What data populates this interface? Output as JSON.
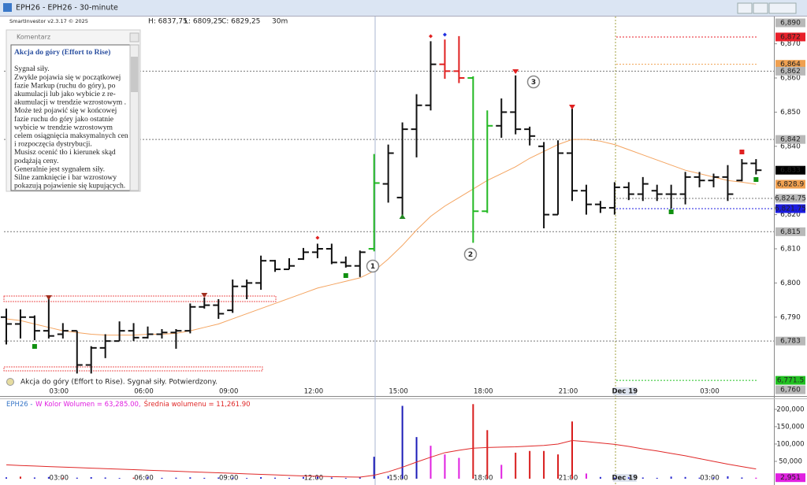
{
  "window_title": "EPH26 - EPH26 - 30-minute",
  "header": {
    "app": "SmartInvestor v2.3.17 © 2025",
    "high": "H: 6837,75",
    "low": "L: 6809,25",
    "close": "C: 6829,25",
    "interval": "30m"
  },
  "comment": {
    "header": "Komentarz",
    "title": "Akcja do góry  (Effort to Rise)",
    "lines": [
      "Sygnał siły.",
      "Zwykle pojawia się w początkowej",
      "fazie Markup (ruchu do góry),  po",
      "akumulacji lub  jako wybicie z re-",
      "akumulacji  w trendzie wzrostowym .",
      "Może też pojawić się w końcowej",
      "fazie ruchu do góry jako ostatnie",
      "wybicie  w trendzie wzrostowym",
      "celem osiągnięcia maksymalnych cen",
      "i rozpoczęcia dystrybucji.",
      "Musisz ocenić tło i kierunek skąd",
      "podążają ceny.",
      "Generalnie jest sygnałem siły.",
      "Silne zamknięcie i bar wzrostowy",
      "pokazują  pojawienie się kupujących."
    ]
  },
  "signal_note": "Akcja do góry (Effort to Rise). Sygnał siły. Potwierdzony.",
  "annotations": [
    "1",
    "2",
    "3"
  ],
  "chart_data": {
    "type": "ohlc",
    "categories": [
      null,
      null,
      null,
      null,
      "03:00",
      null,
      null,
      null,
      null,
      null,
      "06:00",
      null,
      null,
      null,
      null,
      null,
      "09:00",
      null,
      null,
      null,
      null,
      null,
      "12:00",
      null,
      null,
      null,
      null,
      null,
      "15:00",
      null,
      null,
      null,
      null,
      null,
      "18:00",
      null,
      null,
      null,
      null,
      null,
      "21:00",
      null,
      null,
      null,
      "Dec 19",
      null,
      null,
      null,
      null,
      null,
      "03:00",
      null,
      null,
      null
    ],
    "open": [
      6790,
      6788,
      6790,
      6786,
      6785,
      6786,
      6776,
      6781,
      6783,
      6786,
      6784,
      6785,
      6785.5,
      6786,
      6793,
      6793.5,
      6792,
      6799,
      6800,
      6806.5,
      6804,
      6807,
      6809,
      6810,
      6806,
      6805,
      6810,
      6829,
      6825,
      6845,
      6852,
      6864,
      6862,
      6860,
      6821,
      6846,
      6850,
      6845,
      6840,
      6820,
      6838,
      6827,
      6823,
      6822,
      6828,
      6826,
      6827,
      6826,
      6826,
      6831,
      6830,
      6831,
      6830,
      6835
    ],
    "high": [
      6792.5,
      6792.25,
      6790.5,
      6796,
      6788.25,
      6786,
      6781.5,
      6785,
      6788.75,
      6788.25,
      6787.25,
      6786.5,
      6786.5,
      6794,
      6795.75,
      6795.25,
      6801,
      6801,
      6808,
      6806.75,
      6807.25,
      6810.25,
      6811.5,
      6811.5,
      6807.75,
      6809.5,
      6837.75,
      6840.5,
      6847,
      6855.25,
      6870.75,
      6871.25,
      6872.25,
      6860.5,
      6850.5,
      6854,
      6860.75,
      6845.75,
      6841.25,
      6841.75,
      6851,
      6828.75,
      6824,
      6829.5,
      6829.5,
      6831,
      6828.75,
      6828.75,
      6832.5,
      6832.5,
      6832,
      6834.5,
      6836.25,
      6836.25
    ],
    "low": [
      6782,
      6783.75,
      6783.25,
      6783.75,
      6783.75,
      6773.5,
      6773.5,
      6778,
      6783,
      6783,
      6783.75,
      6783.75,
      6780.75,
      6785.25,
      6792.5,
      6789.5,
      6791.25,
      6795.25,
      6798,
      6803.25,
      6804,
      6806.75,
      6807.25,
      6805.5,
      6804.5,
      6801.75,
      6809.25,
      6823.5,
      6819.5,
      6836.75,
      6850.5,
      6859.75,
      6858.5,
      6811.75,
      6820.5,
      6842.5,
      6843.5,
      6840.25,
      6816,
      6820,
      6824,
      6820,
      6820.5,
      6820,
      6824.25,
      6824,
      6824,
      6821.75,
      6823,
      6828,
      6828,
      6824,
      6829.75,
      6831.75
    ],
    "close": [
      6788,
      6790,
      6786,
      6784.5,
      6786,
      6776,
      6781,
      6783,
      6786,
      6784,
      6785,
      6785.5,
      6786,
      6793,
      6793.5,
      6791,
      6799,
      6800,
      6806.5,
      6804,
      6805,
      6809,
      6810,
      6806,
      6805,
      6809,
      6829.25,
      6838,
      6845,
      6852,
      6864,
      6862,
      6860,
      6821,
      6846,
      6850,
      6845,
      6843,
      6820,
      6838,
      6827,
      6823,
      6822,
      6828,
      6826,
      6829,
      6826,
      6826,
      6831,
      6830,
      6831,
      6826,
      6835,
      6833
    ],
    "bar_colors": [
      "#111111",
      "#111111",
      "#111111",
      "#111111",
      "#111111",
      "#111111",
      "#111111",
      "#111111",
      "#111111",
      "#111111",
      "#111111",
      "#111111",
      "#111111",
      "#111111",
      "#111111",
      "#111111",
      "#111111",
      "#111111",
      "#111111",
      "#111111",
      "#111111",
      "#111111",
      "#111111",
      "#111111",
      "#111111",
      "#111111",
      "#22b822",
      "#111111",
      "#111111",
      "#111111",
      "#111111",
      "#e02020",
      "#e02020",
      "#22b822",
      "#22b822",
      "#111111",
      "#111111",
      "#111111",
      "#111111",
      "#111111",
      "#111111",
      "#111111",
      "#111111",
      "#111111",
      "#111111",
      "#111111",
      "#111111",
      "#111111",
      "#111111",
      "#111111",
      "#111111",
      "#111111",
      "#111111",
      "#111111"
    ],
    "ma": {
      "color": "#f4a460",
      "values": [
        6789.5,
        6789,
        6788,
        6787,
        6786,
        6785.5,
        6785,
        6784.75,
        6784.75,
        6784.75,
        6785,
        6785,
        6785.25,
        6786,
        6787,
        6788,
        6789.5,
        6791,
        6792.5,
        6794,
        6795.5,
        6797,
        6798.5,
        6799.5,
        6800.5,
        6801.5,
        6803.5,
        6807,
        6811,
        6815.5,
        6819.5,
        6822.5,
        6825,
        6827.5,
        6830,
        6832,
        6834,
        6836.5,
        6838.5,
        6840.5,
        6842,
        6842,
        6841.5,
        6840.5,
        6839,
        6837.5,
        6836,
        6834.5,
        6833,
        6832,
        6831,
        6830,
        6829.5,
        6828.9
      ]
    },
    "ylim": [
      6767.6,
      6877.75
    ],
    "yticks": [
      {
        "value": 6870,
        "label": "6,870"
      },
      {
        "value": 6860,
        "label": "6,860"
      },
      {
        "value": 6850,
        "label": "6,850"
      },
      {
        "value": 6840,
        "label": "6,840"
      },
      {
        "value": 6820,
        "label": "6,820"
      },
      {
        "value": 6810,
        "label": "6,810"
      },
      {
        "value": 6800,
        "label": "6,800"
      },
      {
        "value": 6790,
        "label": "6,790"
      }
    ],
    "range_labels": [
      "6,890",
      "6,760"
    ],
    "levels": [
      {
        "value": 6872,
        "label": "6,872",
        "color": "#e8202a"
      },
      {
        "value": 6864,
        "label": "6,864",
        "color": "#f0a050"
      },
      {
        "value": 6862,
        "label": "6,862",
        "color": "#b8b8b8"
      },
      {
        "value": 6842,
        "label": "6,842",
        "color": "#b8b8b8"
      },
      {
        "value": 6833,
        "label": "6,833",
        "color": "#000000"
      },
      {
        "value": 6828.9,
        "label": "6,828.9",
        "color": "#f0a050"
      },
      {
        "value": 6824.75,
        "label": "6,824.75",
        "color": "#b8b8b8"
      },
      {
        "value": 6821.75,
        "label": "6,821.75",
        "color": "#1c1ce0"
      },
      {
        "value": 6815,
        "label": "6,815",
        "color": "#b8b8b8"
      },
      {
        "value": 6783,
        "label": "6,783",
        "color": "#b8b8b8"
      },
      {
        "value": 6771.5,
        "label": "6,771.5",
        "color": "#20c020"
      }
    ],
    "volume": {
      "legend": [
        "EPH26 -",
        "W Kolor Wolumen = 63,285.00,",
        "Średnia wolumenu = 11,261.90"
      ],
      "values": [
        4000,
        6000,
        3500,
        5000,
        2500,
        3000,
        4500,
        3500,
        2000,
        3000,
        5500,
        2500,
        3000,
        4000,
        2500,
        3500,
        3000,
        2000,
        4500,
        3000,
        2500,
        5000,
        6000,
        3500,
        2000,
        4000,
        63285,
        8000,
        210000,
        120000,
        95000,
        70000,
        60000,
        215000,
        140000,
        40000,
        75000,
        80000,
        80000,
        70000,
        165000,
        15000,
        5000,
        3000,
        4000,
        3500,
        2500,
        6000,
        5000,
        3000,
        4000,
        7000,
        3500,
        2951
      ],
      "colors": [
        "#2b2bd0",
        "#d81c1c",
        "#2b2bd0",
        "#2b2bd0",
        "#d81c1c",
        "#2b2bd0",
        "#2b2bd0",
        "#2b2bd0",
        "#2b2bd0",
        "#d81c1c",
        "#2b2bd0",
        "#2b2bd0",
        "#2b2bd0",
        "#2b2bd0",
        "#2b2bd0",
        "#2b2bd0",
        "#2b2bd0",
        "#2b2bd0",
        "#2b2bd0",
        "#2b2bd0",
        "#2b2bd0",
        "#2b2bd0",
        "#2b2bd0",
        "#2b2bd0",
        "#2b2bd0",
        "#2b2bd0",
        "#1c1cb8",
        "#2b2bd0",
        "#1c1cb8",
        "#1c1cb8",
        "#e020e0",
        "#e020e0",
        "#e020e0",
        "#d81c1c",
        "#d81c1c",
        "#e020e0",
        "#d81c1c",
        "#d81c1c",
        "#d81c1c",
        "#d81c1c",
        "#d81c1c",
        "#e020e0",
        "#2b2bd0",
        "#2b2bd0",
        "#2b2bd0",
        "#2b2bd0",
        "#2b2bd0",
        "#2b2bd0",
        "#2b2bd0",
        "#2b2bd0",
        "#2b2bd0",
        "#2b2bd0",
        "#2b2bd0",
        "#e020e0"
      ],
      "ma": {
        "color": "#e02828",
        "values": [
          40000,
          38000,
          36500,
          35000,
          33500,
          32000,
          30500,
          29000,
          27500,
          26000,
          24500,
          23000,
          21500,
          20000,
          18500,
          17000,
          15500,
          14000,
          12500,
          11000,
          9500,
          8000,
          7000,
          6000,
          5000,
          4500,
          10000,
          20000,
          33000,
          48000,
          62000,
          75000,
          82000,
          88000,
          90000,
          91000,
          92000,
          94000,
          96000,
          100000,
          110000,
          107000,
          103000,
          99000,
          93000,
          86000,
          80000,
          73000,
          66000,
          58000,
          50000,
          42000,
          35000,
          28000
        ]
      },
      "ylim": [
        0,
        227000
      ],
      "yticks": [
        {
          "value": 50000,
          "label": "50,000"
        },
        {
          "value": 100000,
          "label": "100,000"
        },
        {
          "value": 150000,
          "label": "150,000"
        },
        {
          "value": 200000,
          "label": "200,000"
        }
      ],
      "last": {
        "value": 2951,
        "label": "2,951",
        "color": "#e020e0"
      }
    }
  }
}
